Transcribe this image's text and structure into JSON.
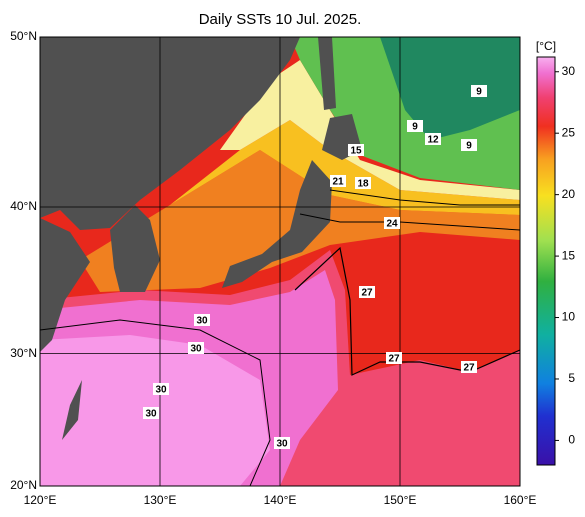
{
  "title": "Daily SSTs 10 Jul. 2025.",
  "map": {
    "lonlim": [
      120,
      160
    ],
    "latlim": [
      20,
      50
    ],
    "lonticks": [
      {
        "value": 120,
        "label": "120°E"
      },
      {
        "value": 130,
        "label": "130°E"
      },
      {
        "value": 140,
        "label": "140°E"
      },
      {
        "value": 150,
        "label": "150°E"
      },
      {
        "value": 160,
        "label": "160°E"
      }
    ],
    "latticks": [
      {
        "value": 20,
        "label": "20°N"
      },
      {
        "value": 30,
        "label": "30°N"
      },
      {
        "value": 40,
        "label": "40°N"
      },
      {
        "value": 50,
        "label": "50°N"
      }
    ],
    "grid": true,
    "contour_labels": [
      30,
      30,
      30,
      30,
      30,
      27,
      27,
      27,
      24,
      21,
      18,
      15,
      12,
      9,
      9,
      9
    ]
  },
  "colorbar": {
    "label": "[°C]",
    "lim": [
      -2,
      31.2
    ],
    "ticks": [
      0,
      5,
      10,
      15,
      20,
      25,
      30
    ]
  }
}
